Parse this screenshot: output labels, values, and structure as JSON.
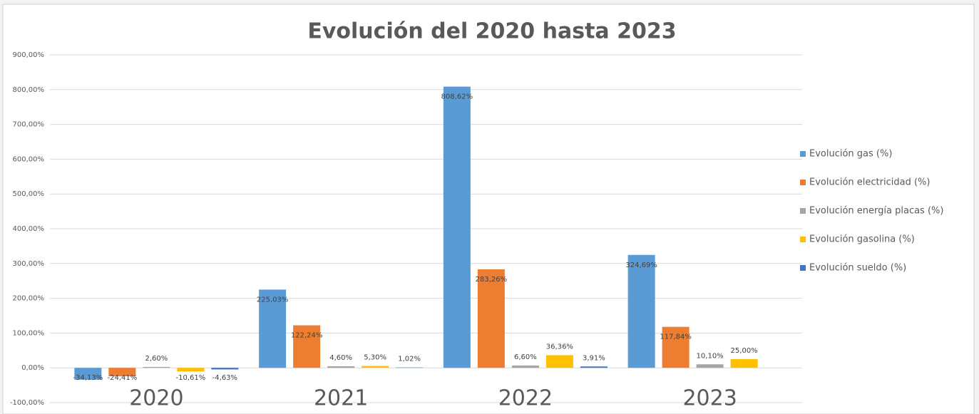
{
  "chart_data": {
    "type": "bar",
    "title": "Evolución del 2020 hasta 2023",
    "categories": [
      "2020",
      "2021",
      "2022",
      "2023"
    ],
    "series": [
      {
        "name": "Evolución gas (%)",
        "color": "#5b9bd5",
        "values": [
          -34.13,
          225.03,
          808.62,
          324.69
        ],
        "value_labels": [
          "-34,13%",
          "225,03%",
          "808,62%",
          "324,69%"
        ]
      },
      {
        "name": "Evolución electricidad (%)",
        "color": "#ed7d31",
        "values": [
          -24.41,
          122.24,
          283.26,
          117.84
        ],
        "value_labels": [
          "-24,41%",
          "122,24%",
          "283,26%",
          "117,84%"
        ]
      },
      {
        "name": "Evolución energía placas (%)",
        "color": "#a5a5a5",
        "values": [
          2.6,
          4.6,
          6.6,
          10.1
        ],
        "value_labels": [
          "2,60%",
          "4,60%",
          "6,60%",
          "10,10%"
        ]
      },
      {
        "name": "Evolución gasolina (%)",
        "color": "#ffc000",
        "values": [
          -10.61,
          5.3,
          36.36,
          25.0
        ],
        "value_labels": [
          "-10,61%",
          "5,30%",
          "36,36%",
          "25,00%"
        ]
      },
      {
        "name": "Evolución sueldo (%)",
        "color": "#4472c4",
        "values": [
          -4.63,
          1.02,
          3.91,
          null
        ],
        "value_labels": [
          "-4,63%",
          "1,02%",
          "3,91%",
          null
        ]
      }
    ],
    "ylim": [
      -100,
      900
    ],
    "yticks": [
      {
        "value": -100,
        "label": "-100,00%"
      },
      {
        "value": 0,
        "label": "0,00%"
      },
      {
        "value": 100,
        "label": "100,00%"
      },
      {
        "value": 200,
        "label": "200,00%"
      },
      {
        "value": 300,
        "label": "300,00%"
      },
      {
        "value": 400,
        "label": "400,00%"
      },
      {
        "value": 500,
        "label": "500,00%"
      },
      {
        "value": 600,
        "label": "600,00%"
      },
      {
        "value": 700,
        "label": "700,00%"
      },
      {
        "value": 800,
        "label": "800,00%"
      },
      {
        "value": 900,
        "label": "900,00%"
      }
    ],
    "grid": true,
    "legend": "right"
  }
}
